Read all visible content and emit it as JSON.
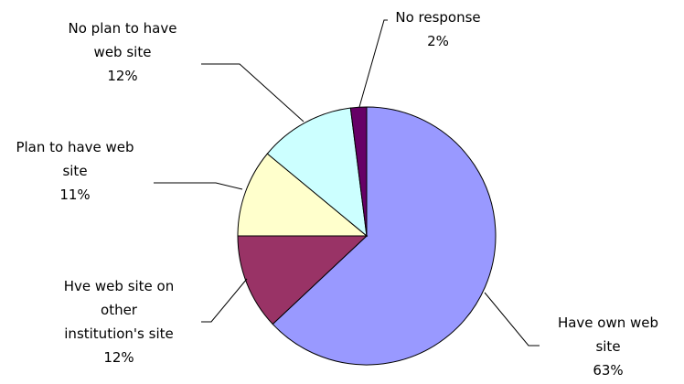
{
  "chart_data": {
    "type": "pie",
    "title": "",
    "slices": [
      {
        "label": [
          "Have own web",
          "site"
        ],
        "value": 63,
        "display": "63%",
        "color": "#9999ff"
      },
      {
        "label": [
          "Hve web site on",
          "other",
          "institution's site"
        ],
        "value": 12,
        "display": "12%",
        "color": "#993366"
      },
      {
        "label": [
          "Plan to have web",
          "site"
        ],
        "value": 11,
        "display": "11%",
        "color": "#ffffcc"
      },
      {
        "label": [
          "No plan to have",
          "web site"
        ],
        "value": 12,
        "display": "12%",
        "color": "#ccffff"
      },
      {
        "label": [
          "No response"
        ],
        "value": 2,
        "display": "2%",
        "color": "#660066"
      }
    ],
    "legend": "none",
    "label_style": "outside with leader lines"
  }
}
